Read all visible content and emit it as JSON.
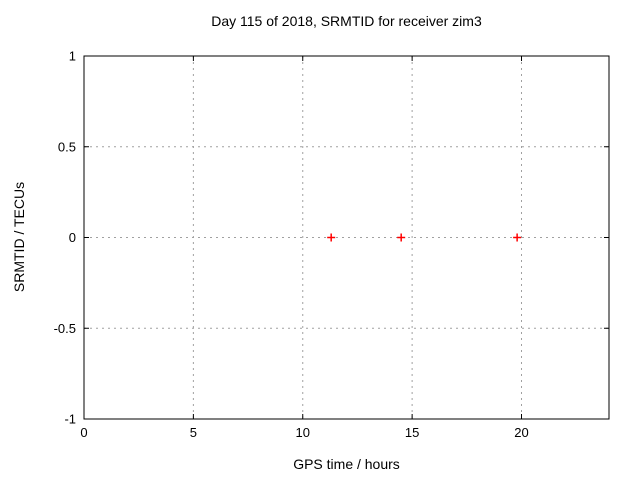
{
  "chart_data": {
    "type": "scatter",
    "title": "Day 115 of 2018, SRMTID for receiver zim3",
    "xlabel": "GPS time / hours",
    "ylabel": "SRMTID / TECUs",
    "xlim": [
      0,
      24
    ],
    "ylim": [
      -1,
      1
    ],
    "grid": true,
    "legend": "none",
    "xticks": [
      {
        "value": 0,
        "label": "0"
      },
      {
        "value": 5,
        "label": "5"
      },
      {
        "value": 10,
        "label": "10"
      },
      {
        "value": 15,
        "label": "15"
      },
      {
        "value": 20,
        "label": "20"
      }
    ],
    "yticks": [
      {
        "value": 1,
        "label": "1"
      },
      {
        "value": 0.5,
        "label": "0.5"
      },
      {
        "value": 0,
        "label": "0"
      },
      {
        "value": -0.5,
        "label": "-0.5"
      },
      {
        "value": -1,
        "label": "-1"
      }
    ],
    "series": [
      {
        "name": "srmtid",
        "marker": "plus",
        "color": "#ff0000",
        "points": [
          [
            11.3,
            0.0
          ],
          [
            14.5,
            0.0
          ],
          [
            19.8,
            0.0
          ]
        ]
      }
    ],
    "colors": {
      "background": "#ffffff",
      "border": "#000000",
      "grid": "#a0a0a0",
      "text": "#000000"
    }
  }
}
